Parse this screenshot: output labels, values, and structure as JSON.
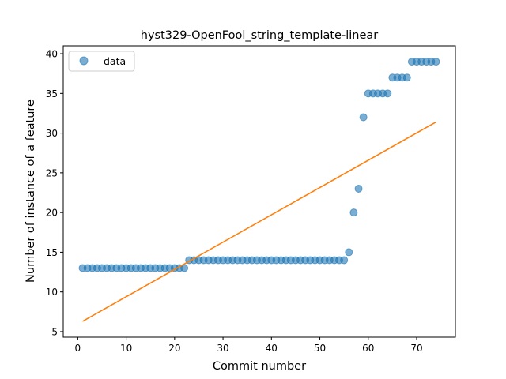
{
  "chart_data": {
    "type": "scatter",
    "title": "hyst329-OpenFool_string_template-linear",
    "xlabel": "Commit number",
    "ylabel": "Number of instance of a feature",
    "xlim": [
      -3,
      78
    ],
    "ylim": [
      4.3,
      41
    ],
    "xticks": [
      0,
      10,
      20,
      30,
      40,
      50,
      60,
      70
    ],
    "yticks": [
      5,
      10,
      15,
      20,
      25,
      30,
      35,
      40
    ],
    "grid": false,
    "legend_position": "upper-left",
    "series": [
      {
        "name": "data",
        "kind": "scatter",
        "color": "#1f77b4",
        "x": [
          1,
          2,
          3,
          4,
          5,
          6,
          7,
          8,
          9,
          10,
          11,
          12,
          13,
          14,
          15,
          16,
          17,
          18,
          19,
          20,
          21,
          22,
          23,
          24,
          25,
          26,
          27,
          28,
          29,
          30,
          31,
          32,
          33,
          34,
          35,
          36,
          37,
          38,
          39,
          40,
          41,
          42,
          43,
          44,
          45,
          46,
          47,
          48,
          49,
          50,
          51,
          52,
          53,
          54,
          55,
          56,
          57,
          58,
          59,
          60,
          61,
          62,
          63,
          64,
          65,
          66,
          67,
          68,
          69,
          70,
          71,
          72,
          73,
          74
        ],
        "y": [
          13,
          13,
          13,
          13,
          13,
          13,
          13,
          13,
          13,
          13,
          13,
          13,
          13,
          13,
          13,
          13,
          13,
          13,
          13,
          13,
          13,
          13,
          14,
          14,
          14,
          14,
          14,
          14,
          14,
          14,
          14,
          14,
          14,
          14,
          14,
          14,
          14,
          14,
          14,
          14,
          14,
          14,
          14,
          14,
          14,
          14,
          14,
          14,
          14,
          14,
          14,
          14,
          14,
          14,
          14,
          15,
          20,
          23,
          32,
          35,
          35,
          35,
          35,
          35,
          37,
          37,
          37,
          37,
          39,
          39,
          39,
          39,
          39,
          39
        ]
      },
      {
        "kind": "line",
        "color": "#ff7f0e",
        "x": [
          1,
          74
        ],
        "y": [
          6.3,
          31.4
        ]
      }
    ]
  }
}
